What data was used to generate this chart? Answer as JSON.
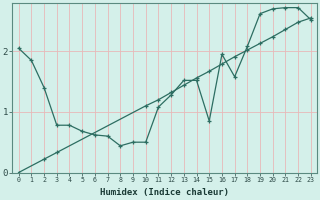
{
  "xlabel": "Humidex (Indice chaleur)",
  "bg_color": "#d4f0ea",
  "grid_color": "#e8b8b8",
  "line_color": "#2d6e62",
  "xlim": [
    -0.5,
    23.5
  ],
  "ylim": [
    0,
    2.8
  ],
  "yticks": [
    0,
    1,
    2
  ],
  "xticks": [
    0,
    1,
    2,
    3,
    4,
    5,
    6,
    7,
    8,
    9,
    10,
    11,
    12,
    13,
    14,
    15,
    16,
    17,
    18,
    19,
    20,
    21,
    22,
    23
  ],
  "line1_x": [
    0,
    1,
    2,
    3,
    4,
    5,
    6,
    7,
    8,
    9,
    10,
    11,
    12,
    13,
    14,
    15,
    16,
    17,
    18,
    19,
    20,
    21,
    22,
    23
  ],
  "line1_y": [
    2.05,
    1.85,
    1.4,
    0.78,
    0.78,
    0.68,
    0.62,
    0.6,
    0.44,
    0.5,
    0.5,
    1.08,
    1.28,
    1.52,
    1.52,
    0.85,
    1.95,
    1.58,
    2.08,
    2.62,
    2.7,
    2.72,
    2.72,
    2.52
  ],
  "line2_x": [
    0,
    2,
    3,
    10,
    11,
    12,
    13,
    14,
    15,
    16,
    17,
    18,
    19,
    20,
    21,
    22,
    23
  ],
  "line2_y": [
    0.0,
    0.22,
    0.33,
    1.1,
    1.2,
    1.32,
    1.44,
    1.56,
    1.67,
    1.79,
    1.91,
    2.02,
    2.13,
    2.24,
    2.36,
    2.48,
    2.55
  ]
}
